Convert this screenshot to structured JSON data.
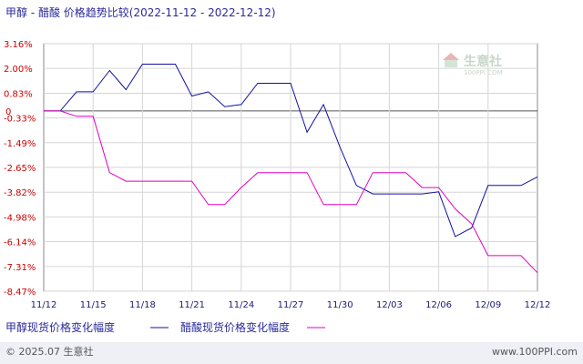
{
  "title": "甲醇 - 醋酸  价格趋势比较(2022-11-12 - 2022-12-12)",
  "watermark": {
    "name": "生意社",
    "url": "100PPI.COM"
  },
  "legend": [
    {
      "label": "甲醇现货价格变化幅度"
    },
    {
      "label": "醋酸现货价格变化幅度"
    }
  ],
  "footer": {
    "copyright": "© 2025.07 生意社",
    "site": "www.100PPI.com"
  },
  "chart_data": {
    "type": "line",
    "ylim": [
      -8.47,
      3.16
    ],
    "y_ticks": [
      "3.16%",
      "2.00%",
      "0.83%",
      "0",
      "-0.33%",
      "-1.49%",
      "-2.65%",
      "-3.82%",
      "-4.98%",
      "-6.14%",
      "-7.31%",
      "-8.47%"
    ],
    "y_tick_values": [
      3.16,
      2.0,
      0.83,
      0,
      -0.33,
      -1.49,
      -2.65,
      -3.82,
      -4.98,
      -6.14,
      -7.31,
      -8.47
    ],
    "x_ticks": [
      "11/12",
      "11/15",
      "11/18",
      "11/21",
      "11/24",
      "11/27",
      "11/30",
      "12/03",
      "12/06",
      "12/09",
      "12/12"
    ],
    "x_tick_days": [
      0,
      3,
      6,
      9,
      12,
      15,
      18,
      21,
      24,
      27,
      30
    ],
    "x_range_days": [
      0,
      30
    ],
    "grid": true,
    "series": [
      {
        "name": "甲醇现货价格变化幅度",
        "color": "#1010a0",
        "points": [
          [
            0,
            0
          ],
          [
            1,
            0
          ],
          [
            2,
            0.9
          ],
          [
            3,
            0.9
          ],
          [
            4,
            1.9
          ],
          [
            5,
            1.0
          ],
          [
            6,
            2.2
          ],
          [
            7,
            2.2
          ],
          [
            8,
            2.2
          ],
          [
            9,
            0.7
          ],
          [
            10,
            0.9
          ],
          [
            11,
            0.2
          ],
          [
            12,
            0.3
          ],
          [
            13,
            1.3
          ],
          [
            14,
            1.3
          ],
          [
            15,
            1.3
          ],
          [
            16,
            -1.0
          ],
          [
            17,
            0.3
          ],
          [
            18,
            -1.7
          ],
          [
            19,
            -3.5
          ],
          [
            20,
            -3.9
          ],
          [
            21,
            -3.9
          ],
          [
            22,
            -3.9
          ],
          [
            23,
            -3.9
          ],
          [
            24,
            -3.8
          ],
          [
            25,
            -5.9
          ],
          [
            26,
            -5.5
          ],
          [
            27,
            -3.5
          ],
          [
            28,
            -3.5
          ],
          [
            29,
            -3.5
          ],
          [
            30,
            -3.1
          ]
        ]
      },
      {
        "name": "醋酸现货价格变化幅度",
        "color": "#e000c0",
        "points": [
          [
            0,
            0
          ],
          [
            1,
            0
          ],
          [
            2,
            -0.25
          ],
          [
            3,
            -0.25
          ],
          [
            4,
            -2.9
          ],
          [
            5,
            -3.3
          ],
          [
            6,
            -3.3
          ],
          [
            7,
            -3.3
          ],
          [
            8,
            -3.3
          ],
          [
            9,
            -3.3
          ],
          [
            10,
            -4.4
          ],
          [
            11,
            -4.4
          ],
          [
            12,
            -3.6
          ],
          [
            13,
            -2.9
          ],
          [
            14,
            -2.9
          ],
          [
            15,
            -2.9
          ],
          [
            16,
            -2.9
          ],
          [
            17,
            -4.4
          ],
          [
            18,
            -4.4
          ],
          [
            19,
            -4.4
          ],
          [
            20,
            -2.9
          ],
          [
            21,
            -2.9
          ],
          [
            22,
            -2.9
          ],
          [
            23,
            -3.6
          ],
          [
            24,
            -3.6
          ],
          [
            25,
            -4.6
          ],
          [
            26,
            -5.3
          ],
          [
            27,
            -6.8
          ],
          [
            28,
            -6.8
          ],
          [
            29,
            -6.8
          ],
          [
            30,
            -7.6
          ]
        ]
      }
    ]
  }
}
